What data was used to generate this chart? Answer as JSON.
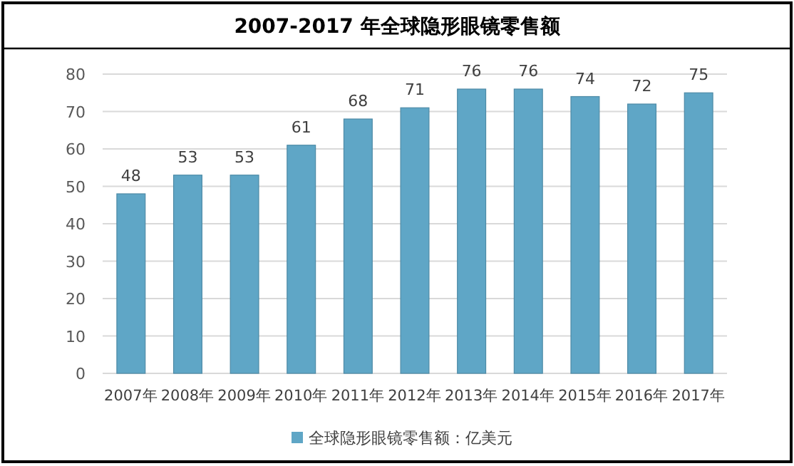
{
  "chart_data": {
    "type": "bar",
    "title": "2007-2017 年全球隐形眼镜零售额",
    "categories": [
      "2007年",
      "2008年",
      "2009年",
      "2010年",
      "2011年",
      "2012年",
      "2013年",
      "2014年",
      "2015年",
      "2016年",
      "2017年"
    ],
    "series": [
      {
        "name": "全球隐形眼镜零售额：亿美元",
        "color": "#5fa6c6",
        "values": [
          48,
          53,
          53,
          61,
          68,
          71,
          76,
          76,
          74,
          72,
          75
        ]
      }
    ],
    "ylim": [
      0,
      80
    ],
    "yticks": [
      0,
      10,
      20,
      30,
      40,
      50,
      60,
      70,
      80
    ],
    "grid": "y",
    "legend": "bottom",
    "data_labels": true
  }
}
